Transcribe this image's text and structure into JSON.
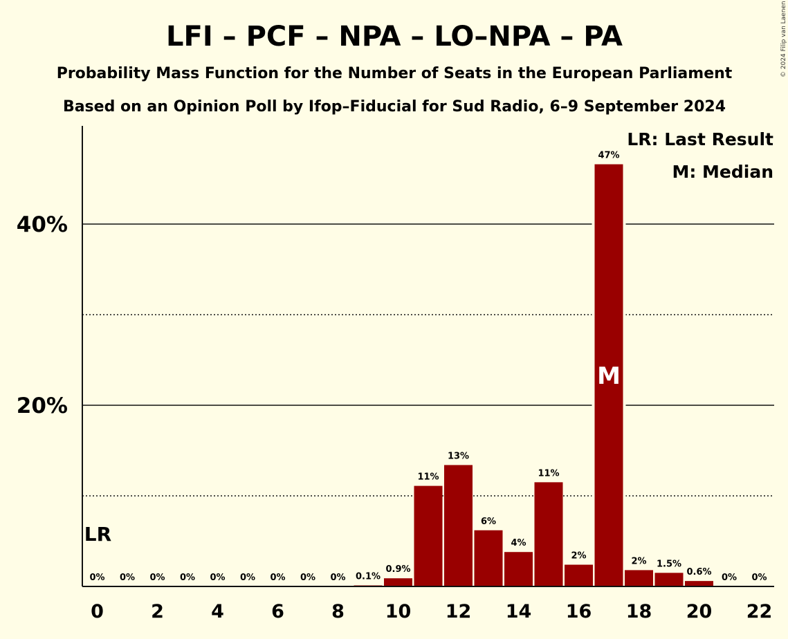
{
  "title": "LFI – PCF – NPA – LO–NPA – PA",
  "subtitle1": "Probability Mass Function for the Number of Seats in the European Parliament",
  "subtitle2": "Based on an Opinion Poll by Ifop–Fiducial for Sud Radio, 6–9 September 2024",
  "copyright": "© 2024 Filip van Laenen",
  "legend": {
    "lr": "LR: Last Result",
    "median": "M: Median"
  },
  "lr_label": "LR",
  "median_label": "M",
  "colors": {
    "bar": "#990000",
    "background": "#fffde6",
    "text": "#111111"
  },
  "chart_data": {
    "type": "bar",
    "x": [
      0,
      1,
      2,
      3,
      4,
      5,
      6,
      7,
      8,
      9,
      10,
      11,
      12,
      13,
      14,
      15,
      16,
      17,
      18,
      19,
      20,
      21,
      22
    ],
    "values": [
      0,
      0,
      0,
      0,
      0,
      0,
      0,
      0,
      0,
      0.1,
      0.9,
      11.1,
      13.4,
      6.2,
      3.8,
      11.5,
      2.4,
      46.6,
      1.8,
      1.5,
      0.6,
      0,
      0
    ],
    "data_labels": [
      "0%",
      "0%",
      "0%",
      "0%",
      "0%",
      "0%",
      "0%",
      "0%",
      "0%",
      "0.1%",
      "0.9%",
      "11%",
      "13%",
      "6%",
      "4%",
      "11%",
      "2%",
      "47%",
      "2%",
      "1.5%",
      "0.6%",
      "0%",
      "0%"
    ],
    "x_tick_labels": [
      "0",
      "2",
      "4",
      "6",
      "8",
      "10",
      "12",
      "14",
      "16",
      "18",
      "20",
      "22"
    ],
    "x_tick_values": [
      0,
      2,
      4,
      6,
      8,
      10,
      12,
      14,
      16,
      18,
      20,
      22
    ],
    "y_tick_labels": [
      "20%",
      "40%"
    ],
    "y_tick_values": [
      20,
      40
    ],
    "y_gridlines_solid": [
      20,
      40
    ],
    "y_gridlines_dotted": [
      10,
      30
    ],
    "ylim": [
      0,
      50
    ],
    "last_result_seats": 0,
    "median_seats": 17,
    "legend_position": "top-right"
  }
}
